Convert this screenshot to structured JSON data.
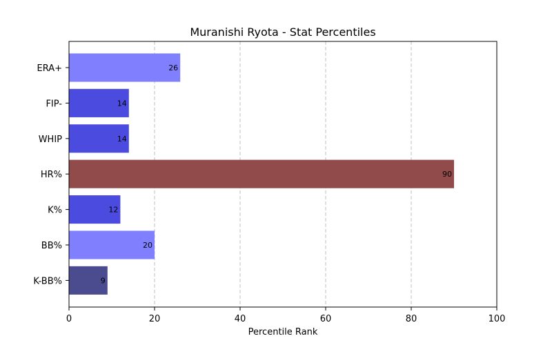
{
  "chart_data": {
    "type": "bar",
    "orientation": "horizontal",
    "title": "Muranishi Ryota - Stat Percentiles",
    "xlabel": "Percentile Rank",
    "ylabel": "",
    "xlim": [
      0,
      100
    ],
    "xticks": [
      0,
      20,
      40,
      60,
      80,
      100
    ],
    "grid": "x",
    "categories": [
      "ERA+",
      "FIP-",
      "WHIP",
      "HR%",
      "K%",
      "BB%",
      "K-BB%"
    ],
    "values": [
      26,
      14,
      14,
      90,
      12,
      20,
      9
    ],
    "bar_colors": [
      "#8080ff",
      "#4b4bdf",
      "#4b4bdf",
      "#914b4b",
      "#4b4bdf",
      "#8080ff",
      "#4b4b8f"
    ],
    "data_labels": [
      "26",
      "14",
      "14",
      "90",
      "12",
      "20",
      "9"
    ]
  }
}
